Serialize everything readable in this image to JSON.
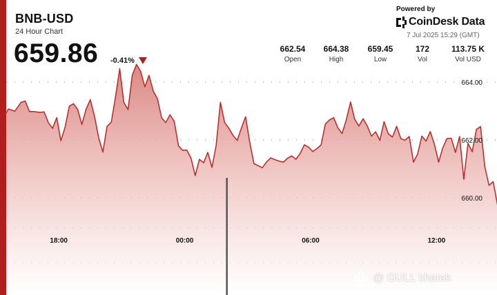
{
  "header": {
    "pair": "BNB-USD",
    "subtitle": "24 Hour Chart",
    "price": "659.86",
    "change": "-0.41%"
  },
  "branding": {
    "powered_by": "Powered by",
    "name": "CoinDesk Data",
    "timestamp": "7 Jul 2025 15:29 (GMT)"
  },
  "stats": [
    {
      "value": "662.54",
      "label": "Open"
    },
    {
      "value": "664.38",
      "label": "High"
    },
    {
      "value": "659.45",
      "label": "Low"
    },
    {
      "value": "172",
      "label": "Vol"
    },
    {
      "value": "113.75 K",
      "label": "Vol USD"
    }
  ],
  "watermark": {
    "text": "@ GULL khatak"
  },
  "colors": {
    "accent": "#b01e1e",
    "line": "#b8302d",
    "fill_top": "#d9817c",
    "fill_bottom": "#ffffff"
  },
  "chart_data": {
    "type": "area",
    "title": "BNB-USD",
    "xlabel": "",
    "ylabel": "",
    "x_ticks": [
      {
        "label": "18:00",
        "hour": 3
      },
      {
        "label": "00:00",
        "hour": 9
      },
      {
        "label": "06:00",
        "hour": 15
      },
      {
        "label": "12:00",
        "hour": 21
      }
    ],
    "y_ticks": [
      "664.00",
      "662.00",
      "660.00"
    ],
    "ylim": [
      659.0,
      664.5
    ],
    "xlim": [
      0,
      24.2
    ],
    "grid": true,
    "series": [
      {
        "points": [
          [
            0.0,
            662.97
          ],
          [
            0.3,
            662.93
          ],
          [
            0.6,
            663.07
          ],
          [
            0.9,
            662.99
          ],
          [
            1.2,
            663.3
          ],
          [
            1.4,
            663.34
          ],
          [
            1.6,
            662.98
          ],
          [
            1.8,
            662.98
          ],
          [
            2.1,
            662.95
          ],
          [
            2.3,
            662.97
          ],
          [
            2.5,
            662.6
          ],
          [
            2.7,
            662.4
          ],
          [
            2.9,
            662.77
          ],
          [
            3.1,
            661.97
          ],
          [
            3.3,
            662.44
          ],
          [
            3.5,
            663.17
          ],
          [
            3.7,
            663.25
          ],
          [
            3.9,
            663.05
          ],
          [
            4.1,
            662.53
          ],
          [
            4.3,
            663.06
          ],
          [
            4.5,
            663.39
          ],
          [
            4.7,
            662.82
          ],
          [
            4.9,
            662.07
          ],
          [
            5.1,
            661.58
          ],
          [
            5.3,
            662.47
          ],
          [
            5.5,
            662.61
          ],
          [
            5.7,
            663.48
          ],
          [
            5.9,
            664.46
          ],
          [
            6.1,
            663.29
          ],
          [
            6.3,
            663.05
          ],
          [
            6.5,
            664.23
          ],
          [
            6.7,
            664.61
          ],
          [
            6.9,
            664.37
          ],
          [
            7.1,
            663.83
          ],
          [
            7.3,
            664.23
          ],
          [
            7.5,
            663.69
          ],
          [
            7.7,
            663.42
          ],
          [
            7.9,
            662.76
          ],
          [
            8.1,
            662.6
          ],
          [
            8.3,
            662.87
          ],
          [
            8.5,
            662.64
          ],
          [
            8.7,
            661.8
          ],
          [
            8.9,
            661.64
          ],
          [
            9.1,
            661.65
          ],
          [
            9.3,
            661.37
          ],
          [
            9.5,
            660.77
          ],
          [
            9.7,
            661.33
          ],
          [
            9.9,
            661.21
          ],
          [
            10.1,
            661.57
          ],
          [
            10.3,
            661.05
          ],
          [
            10.5,
            661.82
          ],
          [
            10.7,
            663.3
          ],
          [
            10.9,
            662.6
          ],
          [
            11.1,
            662.41
          ],
          [
            11.3,
            662.16
          ],
          [
            11.5,
            661.98
          ],
          [
            11.7,
            662.41
          ],
          [
            11.9,
            662.8
          ],
          [
            12.1,
            661.92
          ],
          [
            12.3,
            661.18
          ],
          [
            12.5,
            661.11
          ],
          [
            12.7,
            661.04
          ],
          [
            12.9,
            661.24
          ],
          [
            13.1,
            661.38
          ],
          [
            13.3,
            661.32
          ],
          [
            13.5,
            661.27
          ],
          [
            13.7,
            661.23
          ],
          [
            13.9,
            661.37
          ],
          [
            14.1,
            661.45
          ],
          [
            14.3,
            661.33
          ],
          [
            14.5,
            661.53
          ],
          [
            14.7,
            661.83
          ],
          [
            14.9,
            661.75
          ],
          [
            15.1,
            661.6
          ],
          [
            15.3,
            661.7
          ],
          [
            15.5,
            661.83
          ],
          [
            15.7,
            662.55
          ],
          [
            15.9,
            662.69
          ],
          [
            16.1,
            662.77
          ],
          [
            16.3,
            662.42
          ],
          [
            16.5,
            662.22
          ],
          [
            16.7,
            662.7
          ],
          [
            16.9,
            663.31
          ],
          [
            17.1,
            662.72
          ],
          [
            17.3,
            662.48
          ],
          [
            17.5,
            662.73
          ],
          [
            17.7,
            662.48
          ],
          [
            17.9,
            662.13
          ],
          [
            18.1,
            662.28
          ],
          [
            18.3,
            661.98
          ],
          [
            18.5,
            662.63
          ],
          [
            18.7,
            662.21
          ],
          [
            18.9,
            662.1
          ],
          [
            19.1,
            662.47
          ],
          [
            19.3,
            662.04
          ],
          [
            19.5,
            661.99
          ],
          [
            19.7,
            662.12
          ],
          [
            19.9,
            661.23
          ],
          [
            20.1,
            661.51
          ],
          [
            20.3,
            662.13
          ],
          [
            20.5,
            661.96
          ],
          [
            20.7,
            662.29
          ],
          [
            20.9,
            661.84
          ],
          [
            21.1,
            661.23
          ],
          [
            21.3,
            661.73
          ],
          [
            21.5,
            662.05
          ],
          [
            21.7,
            662.06
          ],
          [
            21.9,
            661.57
          ],
          [
            22.1,
            662.12
          ],
          [
            22.3,
            660.64
          ],
          [
            22.5,
            661.88
          ],
          [
            22.7,
            661.59
          ],
          [
            22.9,
            662.37
          ],
          [
            23.1,
            662.46
          ],
          [
            23.3,
            661.08
          ],
          [
            23.5,
            660.43
          ],
          [
            23.7,
            660.56
          ],
          [
            23.9,
            659.77
          ],
          [
            24.0,
            660.5
          ],
          [
            24.1,
            659.86
          ]
        ]
      }
    ],
    "volume_bars": [
      {
        "hour": 11.0,
        "value": 172
      }
    ]
  }
}
